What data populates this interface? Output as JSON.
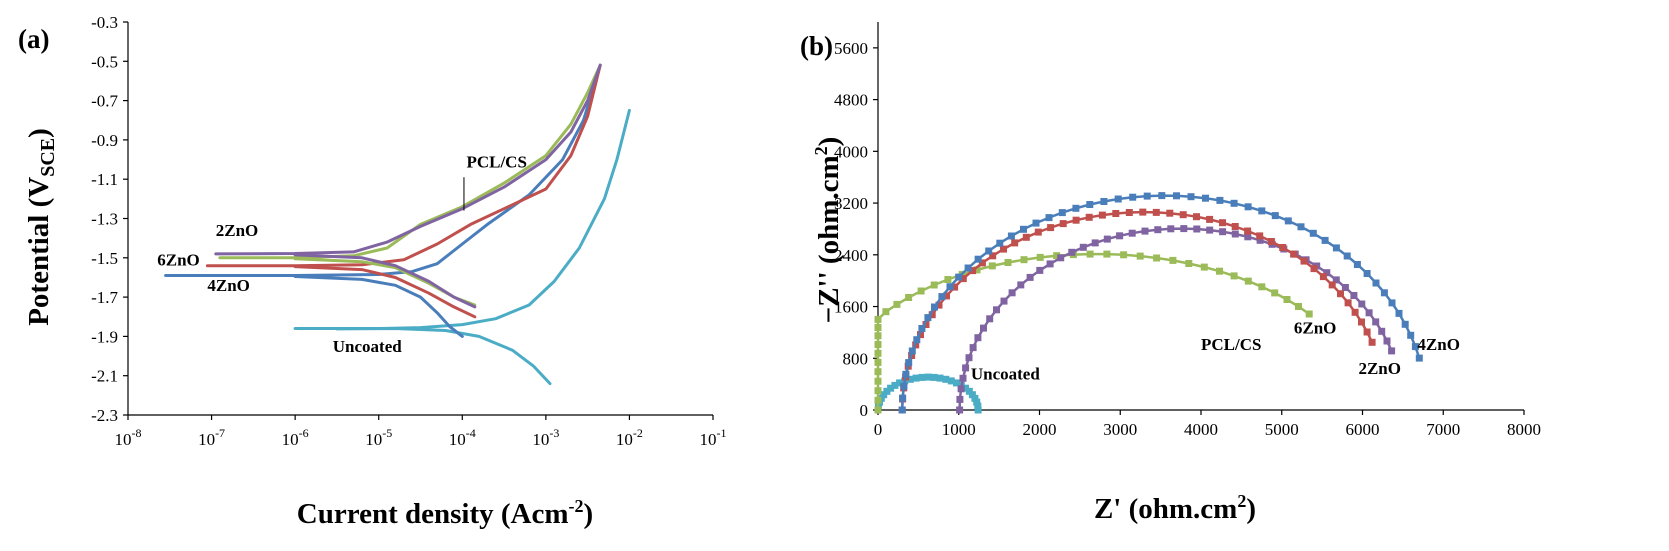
{
  "chart_data": [
    {
      "panel": "(a)",
      "type": "line",
      "xscale": "log",
      "xlim_exp": [
        -8,
        -1
      ],
      "ylim": [
        -2.3,
        -0.3
      ],
      "x_ticks": [
        {
          "exp": -8,
          "base": "10",
          "pow": "-8"
        },
        {
          "exp": -7,
          "base": "10",
          "pow": "-7"
        },
        {
          "exp": -6,
          "base": "10",
          "pow": "-6"
        },
        {
          "exp": -5,
          "base": "10",
          "pow": "-5"
        },
        {
          "exp": -4,
          "base": "10",
          "pow": "-4"
        },
        {
          "exp": -3,
          "base": "10",
          "pow": "-3"
        },
        {
          "exp": -2,
          "base": "10",
          "pow": "-2"
        },
        {
          "exp": -1,
          "base": "10",
          "pow": "-1"
        }
      ],
      "y_ticks": [
        "-0.3",
        "-0.5",
        "-0.7",
        "-0.9",
        "-1.1",
        "-1.3",
        "-1.5",
        "-1.7",
        "-1.9",
        "-2.1",
        "-2.3"
      ],
      "xlabel": {
        "main": "Current density (Acm",
        "sup": "-2",
        "end": ")"
      },
      "ylabel": {
        "main": "Potential (V",
        "sub": "SCE",
        "end": ")"
      },
      "series": [
        {
          "name": "Uncoated",
          "color": "#4bacc6",
          "anodic": [
            [
              -6.0,
              -1.86
            ],
            [
              -5.0,
              -1.86
            ],
            [
              -4.5,
              -1.855
            ],
            [
              -4.0,
              -1.84
            ],
            [
              -3.6,
              -1.81
            ],
            [
              -3.2,
              -1.74
            ],
            [
              -2.9,
              -1.62
            ],
            [
              -2.6,
              -1.45
            ],
            [
              -2.3,
              -1.2
            ],
            [
              -2.15,
              -1.0
            ],
            [
              -2.0,
              -0.75
            ]
          ],
          "cathodic": [
            [
              -5.5,
              -1.862
            ],
            [
              -4.8,
              -1.86
            ],
            [
              -4.2,
              -1.87
            ],
            [
              -3.8,
              -1.9
            ],
            [
              -3.4,
              -1.97
            ],
            [
              -3.15,
              -2.05
            ],
            [
              -2.95,
              -2.14
            ]
          ]
        },
        {
          "name": "4ZnO",
          "color": "#4a7ebb",
          "anodic": [
            [
              -7.55,
              -1.59
            ],
            [
              -6.0,
              -1.59
            ],
            [
              -5.0,
              -1.585
            ],
            [
              -4.6,
              -1.57
            ],
            [
              -4.3,
              -1.53
            ],
            [
              -4.0,
              -1.43
            ],
            [
              -3.7,
              -1.33
            ],
            [
              -3.2,
              -1.18
            ],
            [
              -2.8,
              -1.0
            ],
            [
              -2.55,
              -0.8
            ],
            [
              -2.35,
              -0.52
            ]
          ],
          "cathodic": [
            [
              -6.0,
              -1.595
            ],
            [
              -5.2,
              -1.61
            ],
            [
              -4.8,
              -1.64
            ],
            [
              -4.5,
              -1.7
            ],
            [
              -4.3,
              -1.78
            ],
            [
              -4.15,
              -1.85
            ],
            [
              -4.0,
              -1.9
            ]
          ]
        },
        {
          "name": "6ZnO",
          "color": "#c0504d",
          "anodic": [
            [
              -7.05,
              -1.54
            ],
            [
              -6.0,
              -1.54
            ],
            [
              -5.2,
              -1.535
            ],
            [
              -4.7,
              -1.51
            ],
            [
              -4.3,
              -1.43
            ],
            [
              -3.9,
              -1.33
            ],
            [
              -3.5,
              -1.25
            ],
            [
              -3.0,
              -1.15
            ],
            [
              -2.7,
              -0.98
            ],
            [
              -2.5,
              -0.78
            ],
            [
              -2.35,
              -0.52
            ]
          ],
          "cathodic": [
            [
              -6.0,
              -1.545
            ],
            [
              -5.2,
              -1.56
            ],
            [
              -4.8,
              -1.6
            ],
            [
              -4.4,
              -1.68
            ],
            [
              -4.1,
              -1.75
            ],
            [
              -3.85,
              -1.8
            ]
          ]
        },
        {
          "name": "PCL/CS",
          "color": "#9bbb59",
          "anodic": [
            [
              -6.9,
              -1.5
            ],
            [
              -6.0,
              -1.5
            ],
            [
              -5.3,
              -1.49
            ],
            [
              -4.9,
              -1.45
            ],
            [
              -4.5,
              -1.33
            ],
            [
              -4.0,
              -1.24
            ],
            [
              -3.5,
              -1.12
            ],
            [
              -3.0,
              -0.98
            ],
            [
              -2.7,
              -0.82
            ],
            [
              -2.5,
              -0.66
            ],
            [
              -2.35,
              -0.52
            ]
          ],
          "cathodic": [
            [
              -6.0,
              -1.505
            ],
            [
              -5.2,
              -1.52
            ],
            [
              -4.8,
              -1.55
            ],
            [
              -4.4,
              -1.63
            ],
            [
              -4.1,
              -1.7
            ],
            [
              -3.85,
              -1.74
            ]
          ]
        },
        {
          "name": "2ZnO",
          "color": "#8064a2",
          "anodic": [
            [
              -6.95,
              -1.48
            ],
            [
              -6.0,
              -1.478
            ],
            [
              -5.3,
              -1.47
            ],
            [
              -4.9,
              -1.42
            ],
            [
              -4.5,
              -1.34
            ],
            [
              -4.0,
              -1.25
            ],
            [
              -3.5,
              -1.14
            ],
            [
              -3.0,
              -1.0
            ],
            [
              -2.7,
              -0.86
            ],
            [
              -2.5,
              -0.7
            ],
            [
              -2.35,
              -0.52
            ]
          ],
          "cathodic": [
            [
              -6.0,
              -1.485
            ],
            [
              -5.2,
              -1.5
            ],
            [
              -4.8,
              -1.54
            ],
            [
              -4.4,
              -1.62
            ],
            [
              -4.1,
              -1.7
            ],
            [
              -3.85,
              -1.75
            ]
          ]
        }
      ],
      "labels": [
        {
          "text": "PCL/CS",
          "x_exp": -3.95,
          "y": -1.04
        },
        {
          "text": "2ZnO",
          "x_exp": -6.95,
          "y": -1.39
        },
        {
          "text": "6ZnO",
          "x_exp": -7.65,
          "y": -1.54
        },
        {
          "text": "4ZnO",
          "x_exp": -7.05,
          "y": -1.67
        },
        {
          "text": "Uncoated",
          "x_exp": -5.55,
          "y": -1.98
        }
      ]
    },
    {
      "panel": "(b)",
      "type": "scatter",
      "xlim": [
        0,
        8000
      ],
      "ylim": [
        0,
        6000
      ],
      "x_ticks": [
        "0",
        "1000",
        "2000",
        "3000",
        "4000",
        "5000",
        "6000",
        "7000",
        "8000"
      ],
      "y_ticks": [
        "0",
        "800",
        "1600",
        "2400",
        "3200",
        "4000",
        "4800",
        "5600"
      ],
      "xlabel": {
        "main": "Z' (ohm.cm",
        "sup": "2",
        "end": ")"
      },
      "ylabel": {
        "main": "−Z'' (ohm.cm",
        "sup": "2",
        "end": ")"
      },
      "series": [
        {
          "name": "Uncoated",
          "color": "#4bacc6",
          "cx": 620,
          "r": 620,
          "scale_y": 0.82,
          "n": 26
        },
        {
          "name": "PCL/CS",
          "color": "#9bbb59",
          "cx": 2700,
          "r": 3350,
          "start_deg": 180,
          "end_deg": 38,
          "scale_y": 0.72,
          "n": 40
        },
        {
          "name": "2ZnO",
          "color": "#8064a2",
          "cx": 3500,
          "r": 2750,
          "start_deg": 180,
          "end_deg": 19,
          "scale_y": 1.02,
          "n": 48,
          "x_shift": 260
        },
        {
          "name": "6ZnO",
          "color": "#c0504d",
          "cx": 3300,
          "r": 3000,
          "start_deg": 180,
          "end_deg": 20,
          "scale_y": 1.02,
          "n": 50
        },
        {
          "name": "4ZnO",
          "color": "#4a7ebb",
          "cx": 3700,
          "r": 3250,
          "start_deg": 180,
          "end_deg": 14,
          "scale_y": 1.02,
          "n": 52,
          "x_shift": -150
        }
      ],
      "labels": [
        {
          "text": "Uncoated",
          "x": 1150,
          "y": 470
        },
        {
          "text": "PCL/CS",
          "x": 4000,
          "y": 930
        },
        {
          "text": "6ZnO",
          "x": 5150,
          "y": 1180
        },
        {
          "text": "2ZnO",
          "x": 5950,
          "y": 560
        },
        {
          "text": "4ZnO",
          "x": 6680,
          "y": 930
        }
      ]
    }
  ]
}
